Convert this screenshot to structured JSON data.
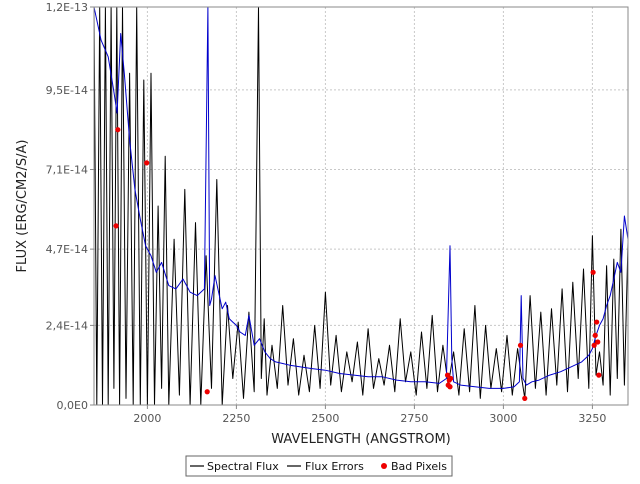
{
  "chart_data": {
    "type": "line",
    "title": "",
    "xlabel": "WAVELENGTH (ANGSTROM)",
    "ylabel": "FLUX (ERG/CM2/S/A)",
    "xlim": [
      1850,
      3350
    ],
    "ylim": [
      0,
      1.2e-13
    ],
    "x_ticks": [
      2000,
      2250,
      2500,
      2750,
      3000,
      3250
    ],
    "x_tick_labels": [
      "2000",
      "2250",
      "2500",
      "2750",
      "3000",
      "3250"
    ],
    "y_ticks": [
      0,
      2.4e-14,
      4.7e-14,
      7.1e-14,
      9.5e-14,
      1.2e-13
    ],
    "y_tick_labels": [
      "0,0E0",
      "2,4E-14",
      "4,7E-14",
      "7,1E-14",
      "9,5E-14",
      "1,2E-13"
    ],
    "grid": true,
    "legend_position": "bottom",
    "legend": [
      "Spectral Flux",
      "Flux Errors",
      "Bad Pixels"
    ],
    "colors": {
      "flux": "#000000",
      "errors": "#0000cc",
      "bad_pixels": "#ee0000"
    },
    "series": [
      {
        "name": "Spectral Flux",
        "x": [
          1850,
          1858,
          1866,
          1874,
          1882,
          1890,
          1898,
          1906,
          1914,
          1922,
          1930,
          1940,
          1950,
          1960,
          1970,
          1980,
          1990,
          2000,
          2010,
          2020,
          2030,
          2040,
          2050,
          2060,
          2075,
          2090,
          2105,
          2120,
          2135,
          2150,
          2165,
          2180,
          2195,
          2210,
          2225,
          2240,
          2255,
          2270,
          2285,
          2300,
          2312,
          2320,
          2328,
          2336,
          2350,
          2365,
          2380,
          2395,
          2410,
          2425,
          2440,
          2455,
          2470,
          2485,
          2500,
          2515,
          2530,
          2545,
          2560,
          2575,
          2590,
          2605,
          2620,
          2635,
          2650,
          2665,
          2680,
          2695,
          2710,
          2725,
          2740,
          2755,
          2770,
          2785,
          2800,
          2815,
          2830,
          2845,
          2860,
          2875,
          2890,
          2905,
          2920,
          2935,
          2950,
          2965,
          2980,
          2995,
          3010,
          3025,
          3040,
          3050,
          3060,
          3075,
          3090,
          3105,
          3120,
          3135,
          3150,
          3165,
          3180,
          3195,
          3210,
          3225,
          3240,
          3250,
          3260,
          3270,
          3280,
          3290,
          3300,
          3310,
          3320,
          3330,
          3340,
          3350
        ],
        "y": [
          1.2e-13,
          0,
          1.2e-13,
          0,
          1.2e-13,
          0,
          1.2e-13,
          5e-15,
          1.2e-13,
          0,
          1.2e-13,
          2e-15,
          1e-13,
          0,
          1.2e-13,
          0,
          9.8e-14,
          0,
          1e-13,
          0,
          6e-14,
          5e-15,
          7.5e-14,
          0,
          5e-14,
          3e-15,
          6.5e-14,
          0,
          5.5e-14,
          0,
          4.5e-14,
          5e-15,
          6.8e-14,
          0,
          3e-14,
          8e-15,
          2.5e-14,
          2e-15,
          2.8e-14,
          4e-15,
          1.2e-13,
          8e-15,
          2.6e-14,
          3e-15,
          1.8e-14,
          5e-15,
          3e-14,
          6e-15,
          2e-14,
          3e-15,
          1.5e-14,
          4e-15,
          2.4e-14,
          5e-15,
          3.4e-14,
          6e-15,
          2.1e-14,
          4e-15,
          1.6e-14,
          7e-15,
          1.9e-14,
          3e-15,
          2.3e-14,
          5e-15,
          1.4e-14,
          6e-15,
          1.8e-14,
          4e-15,
          2.6e-14,
          7e-15,
          1.6e-14,
          3e-15,
          2.2e-14,
          5e-15,
          2.7e-14,
          4e-15,
          1.8e-14,
          6e-15,
          1.6e-14,
          3e-15,
          2.3e-14,
          4e-15,
          3e-14,
          2e-15,
          2.4e-14,
          5e-15,
          1.7e-14,
          4e-15,
          2.1e-14,
          3e-15,
          1.7e-14,
          9e-15,
          2e-15,
          3.3e-14,
          5e-15,
          2.8e-14,
          3e-15,
          2.9e-14,
          6e-15,
          3.5e-14,
          4e-15,
          3.7e-14,
          8e-15,
          4.1e-14,
          5e-15,
          5.1e-14,
          9e-15,
          1.6e-14,
          6e-15,
          4.2e-14,
          3e-15,
          4.4e-14,
          8e-15,
          5.3e-14,
          6e-15,
          4.9e-14
        ]
      },
      {
        "name": "Flux Errors",
        "x": [
          1850,
          1870,
          1890,
          1905,
          1915,
          1925,
          1935,
          1950,
          1965,
          1980,
          1995,
          2010,
          2025,
          2040,
          2060,
          2080,
          2100,
          2120,
          2140,
          2160,
          2170,
          2175,
          2180,
          2190,
          2200,
          2210,
          2220,
          2230,
          2240,
          2250,
          2260,
          2275,
          2285,
          2300,
          2315,
          2330,
          2345,
          2360,
          2380,
          2400,
          2430,
          2460,
          2500,
          2540,
          2580,
          2620,
          2660,
          2700,
          2740,
          2780,
          2820,
          2840,
          2850,
          2855,
          2860,
          2880,
          2920,
          2960,
          3000,
          3030,
          3045,
          3050,
          3055,
          3065,
          3080,
          3100,
          3130,
          3160,
          3190,
          3220,
          3240,
          3250,
          3260,
          3270,
          3280,
          3290,
          3300,
          3310,
          3320,
          3330,
          3340,
          3350
        ],
        "y": [
          1.2e-13,
          1.1e-13,
          1.05e-13,
          9.5e-14,
          8.8e-14,
          1.12e-13,
          1e-13,
          8e-14,
          6.5e-14,
          5.6e-14,
          4.8e-14,
          4.5e-14,
          4e-14,
          4.3e-14,
          3.6e-14,
          3.5e-14,
          3.8e-14,
          3.4e-14,
          3.3e-14,
          3.5e-14,
          1.2e-13,
          3e-14,
          3.2e-14,
          3.9e-14,
          3.4e-14,
          2.9e-14,
          3.1e-14,
          2.6e-14,
          2.5e-14,
          2.4e-14,
          2.2e-14,
          2.1e-14,
          2.7e-14,
          1.8e-14,
          2e-14,
          1.6e-14,
          1.4e-14,
          1.3e-14,
          1.25e-14,
          1.2e-14,
          1.15e-14,
          1.1e-14,
          1.05e-14,
          9.5e-15,
          9e-15,
          8.5e-15,
          8.5e-15,
          7.5e-15,
          7e-15,
          7e-15,
          6.5e-15,
          8e-15,
          4.8e-14,
          1.4e-14,
          7e-15,
          6e-15,
          5.5e-15,
          5e-15,
          5e-15,
          5.5e-15,
          7e-15,
          3.3e-14,
          8e-15,
          6e-15,
          7e-15,
          7.5e-15,
          9e-15,
          1e-14,
          1.15e-14,
          1.3e-14,
          1.5e-14,
          1.7e-14,
          2.1e-14,
          2.4e-14,
          2.6e-14,
          3e-14,
          3.3e-14,
          3.8e-14,
          4.3e-14,
          4e-14,
          5.7e-14,
          5e-14
        ]
      },
      {
        "name": "Bad Pixels",
        "x": [
          1912,
          1917,
          1998,
          2168,
          2843,
          2845,
          2848,
          2850,
          2852,
          3048,
          3060,
          3252,
          3255,
          3258,
          3262,
          3265,
          3268
        ],
        "y": [
          5.4e-14,
          8.3e-14,
          7.3e-14,
          4e-15,
          9e-15,
          6e-15,
          7.5e-15,
          5.5e-15,
          8e-15,
          1.8e-14,
          2e-15,
          4e-14,
          1.8e-14,
          2.1e-14,
          2.5e-14,
          1.9e-14,
          9e-15
        ]
      }
    ]
  }
}
